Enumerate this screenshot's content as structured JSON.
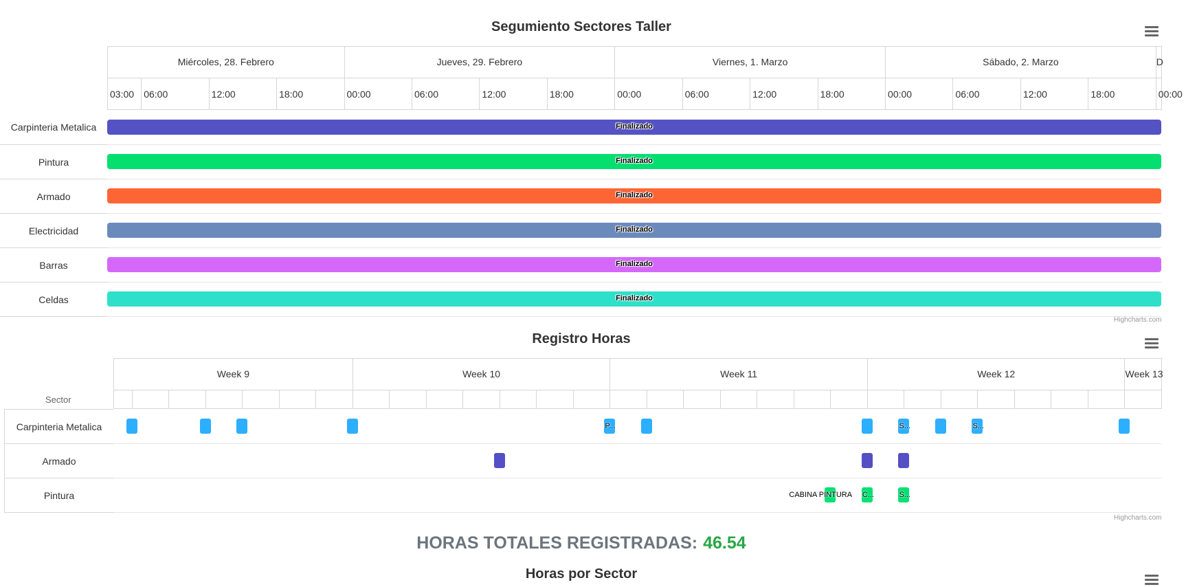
{
  "chart_data": [
    {
      "type": "gantt",
      "title": "Segumiento Sectores Taller",
      "x_axis_top": [
        "Miércoles, 28. Febrero",
        "Jueves, 29. Febrero",
        "Viernes, 1. Marzo",
        "Sábado, 2. Marzo",
        "D"
      ],
      "x_axis_ticks": [
        "03:00",
        "06:00",
        "12:00",
        "18:00",
        "00:00",
        "06:00",
        "12:00",
        "18:00",
        "00:00",
        "06:00",
        "12:00",
        "18:00",
        "00:00",
        "06:00",
        "12:00",
        "18:00",
        "00:00"
      ],
      "categories": [
        "Carpinteria Metalica",
        "Pintura",
        "Armado",
        "Electricidad",
        "Barras",
        "Celdas"
      ],
      "x_range": [
        "2024-02-28 03:00",
        "2024-03-03 00:30"
      ],
      "tasks": [
        {
          "category": "Carpinteria Metalica",
          "start": "2024-02-28 03:00",
          "end": "2024-03-03 00:30",
          "label": "Finalizado",
          "color": "#5552c4"
        },
        {
          "category": "Pintura",
          "start": "2024-02-28 03:00",
          "end": "2024-03-03 00:30",
          "label": "Finalizado",
          "color": "#04df70"
        },
        {
          "category": "Armado",
          "start": "2024-02-28 03:00",
          "end": "2024-03-03 00:30",
          "label": "Finalizado",
          "color": "#fe6535"
        },
        {
          "category": "Electricidad",
          "start": "2024-02-28 03:00",
          "end": "2024-03-03 00:30",
          "label": "Finalizado",
          "color": "#6b8abc"
        },
        {
          "category": "Barras",
          "start": "2024-02-28 03:00",
          "end": "2024-03-03 00:30",
          "label": "Finalizado",
          "color": "#d568fb"
        },
        {
          "category": "Celdas",
          "start": "2024-02-28 03:00",
          "end": "2024-03-03 00:30",
          "label": "Finalizado",
          "color": "#2ee0c9"
        }
      ],
      "credits": "Highcharts.com"
    },
    {
      "type": "gantt",
      "title": "Registro Horas",
      "y_axis_title": "Sector",
      "x_axis_top": [
        "Week 9",
        "Week 10",
        "Week 11",
        "Week 12",
        "Week 13"
      ],
      "categories": [
        "Carpinteria Metalica",
        "Armado",
        "Pintura"
      ],
      "x_range": [
        "2024-02-27",
        "2024-03-25"
      ],
      "points": [
        {
          "category": "Carpinteria Metalica",
          "start": "2024-02-27",
          "end": "2024-02-27",
          "label": "",
          "color": "#2caffe"
        },
        {
          "category": "Carpinteria Metalica",
          "start": "2024-02-29",
          "end": "2024-02-29",
          "label": "",
          "color": "#2caffe"
        },
        {
          "category": "Carpinteria Metalica",
          "start": "2024-03-01",
          "end": "2024-03-01",
          "label": "",
          "color": "#2caffe"
        },
        {
          "category": "Carpinteria Metalica",
          "start": "2024-03-04",
          "end": "2024-03-04",
          "label": "",
          "color": "#2caffe"
        },
        {
          "category": "Carpinteria Metalica",
          "start": "2024-03-11",
          "end": "2024-03-11",
          "label": "P...",
          "color": "#2caffe"
        },
        {
          "category": "Carpinteria Metalica",
          "start": "2024-03-12",
          "end": "2024-03-12",
          "label": "",
          "color": "#2caffe"
        },
        {
          "category": "Carpinteria Metalica",
          "start": "2024-03-18",
          "end": "2024-03-18",
          "label": "",
          "color": "#2caffe"
        },
        {
          "category": "Carpinteria Metalica",
          "start": "2024-03-19",
          "end": "2024-03-19",
          "label": "S...",
          "color": "#2caffe"
        },
        {
          "category": "Carpinteria Metalica",
          "start": "2024-03-20",
          "end": "2024-03-20",
          "label": "",
          "color": "#2caffe"
        },
        {
          "category": "Carpinteria Metalica",
          "start": "2024-03-21",
          "end": "2024-03-21",
          "label": "S...",
          "color": "#2caffe"
        },
        {
          "category": "Carpinteria Metalica",
          "start": "2024-03-25",
          "end": "2024-03-25",
          "label": "",
          "color": "#2caffe"
        },
        {
          "category": "Armado",
          "start": "2024-03-08",
          "end": "2024-03-08",
          "label": "",
          "color": "#544fc5"
        },
        {
          "category": "Armado",
          "start": "2024-03-18",
          "end": "2024-03-18",
          "label": "",
          "color": "#544fc5"
        },
        {
          "category": "Armado",
          "start": "2024-03-19",
          "end": "2024-03-19",
          "label": "",
          "color": "#544fc5"
        },
        {
          "category": "Pintura",
          "start": "2024-03-17",
          "end": "2024-03-17",
          "label": "CABINA PINTURA",
          "color": "#00e272"
        },
        {
          "category": "Pintura",
          "start": "2024-03-18",
          "end": "2024-03-18",
          "label": "C...",
          "color": "#00e272"
        },
        {
          "category": "Pintura",
          "start": "2024-03-19",
          "end": "2024-03-19",
          "label": "S...",
          "color": "#00e272"
        }
      ],
      "credits": "Highcharts.com"
    }
  ],
  "totals": {
    "label": "HORAS TOTALES REGISTRADAS:",
    "value": "46.54"
  },
  "chart3": {
    "title": "Horas por Sector"
  }
}
